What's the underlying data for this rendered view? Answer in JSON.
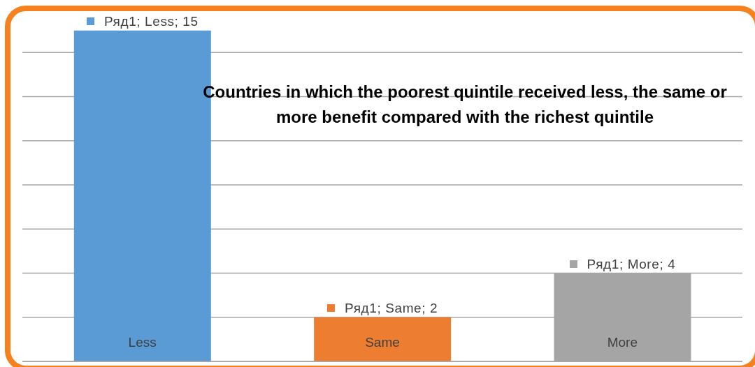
{
  "chart_data": {
    "type": "bar",
    "title": "Countries in which the poorest quintile received less, the same or more benefit compared with the richest quintile",
    "categories": [
      "Less",
      "Same",
      "More"
    ],
    "values": [
      15,
      2,
      4
    ],
    "colors": [
      "#5b9bd5",
      "#ed7d31",
      "#a5a5a5"
    ],
    "value_labels": [
      "Ряд1; Less; 15",
      "Ряд1; Same; 2",
      "Ряд1; More; 4"
    ],
    "ylim": [
      0,
      16
    ],
    "tick_labels": "x",
    "grid": "y"
  }
}
